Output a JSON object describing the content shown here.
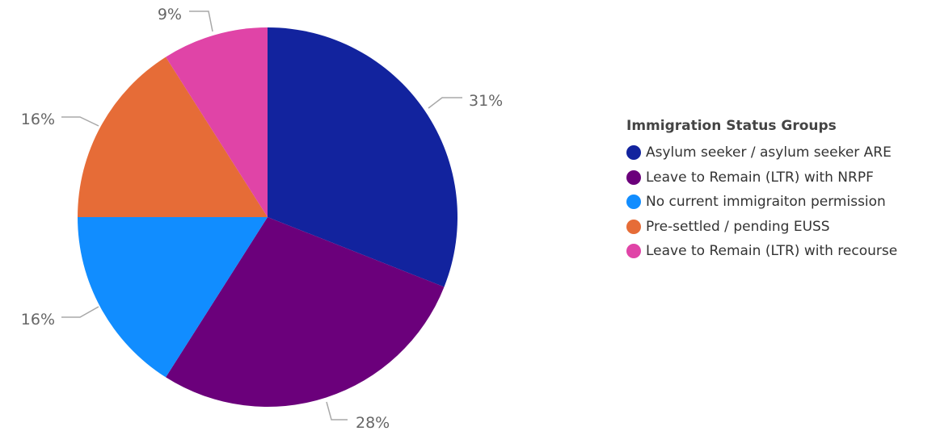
{
  "chart_data": {
    "type": "pie",
    "legend_title": "Immigration Status Groups",
    "legend_position": "right",
    "slices": [
      {
        "label": "Asylum seeker / asylum seeker ARE",
        "value": 31,
        "display": "31%",
        "color": "#12239E"
      },
      {
        "label": "Leave to Remain (LTR) with NRPF",
        "value": 28,
        "display": "28%",
        "color": "#6B007B"
      },
      {
        "label": "No current immigraiton permission",
        "value": 16,
        "display": "16%",
        "color": "#118DFF"
      },
      {
        "label": "Pre-settled / pending EUSS",
        "value": 16,
        "display": "16%",
        "color": "#E66C37"
      },
      {
        "label": "Leave to Remain (LTR) with recourse",
        "value": 9,
        "display": "9%",
        "color": "#E044A7"
      }
    ]
  }
}
